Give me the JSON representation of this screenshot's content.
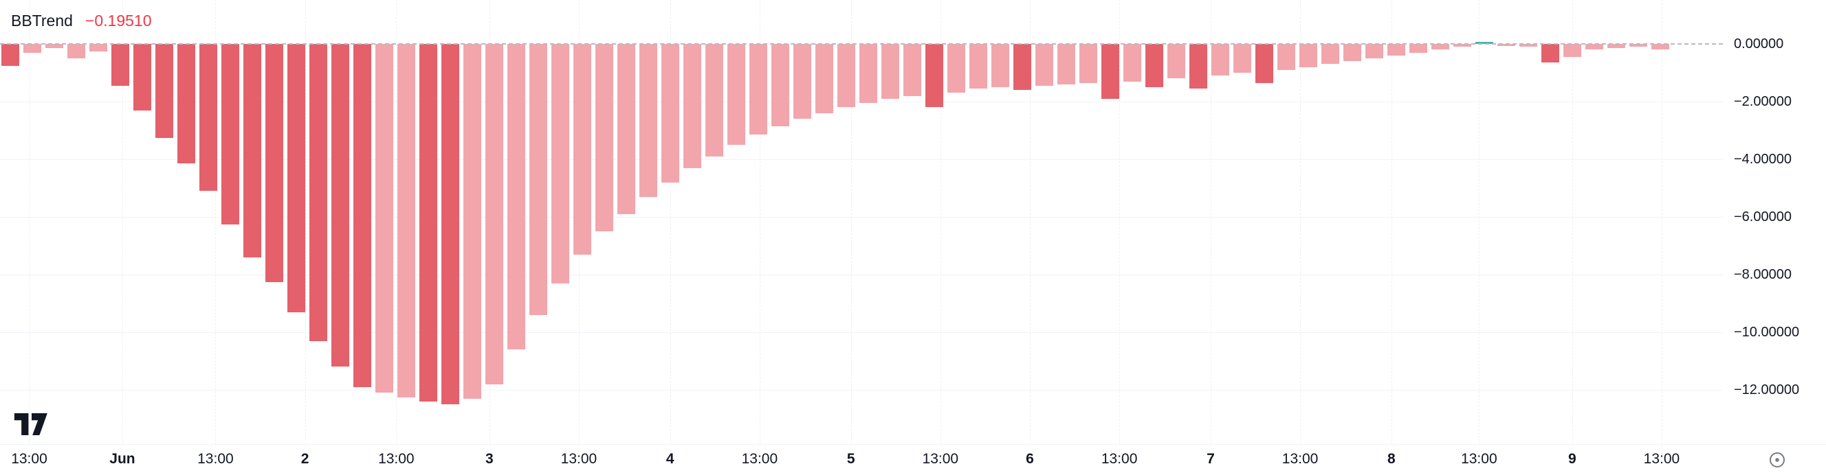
{
  "indicator": {
    "name": "BBTrend",
    "value": "−0.19510"
  },
  "colors": {
    "bar_dark": "#e4606a",
    "bar_light": "#f2a6ac",
    "bar_teal": "#45b3a7",
    "value_text": "#f23645",
    "axis_text": "#131722",
    "zero_line": "#b8bac3",
    "icon_gray": "#787b86"
  },
  "icons": {
    "logo": "tradingview-logo",
    "pane": "scale-settings-icon"
  },
  "chart_data": {
    "type": "bar",
    "title": "BBTrend",
    "current_value": -0.1951,
    "ylim": [
      -13.5,
      0.6
    ],
    "grid": true,
    "legend_position": "none",
    "y_ticks": [
      "0.00000",
      "−2.00000",
      "−4.00000",
      "−6.00000",
      "−8.00000",
      "−10.00000",
      "−12.00000"
    ],
    "x_ticks": [
      {
        "label": "13:00",
        "pct": 1.6,
        "bold": false
      },
      {
        "label": "Jun",
        "pct": 6.7,
        "bold": true
      },
      {
        "label": "13:00",
        "pct": 11.8,
        "bold": false
      },
      {
        "label": "2",
        "pct": 16.7,
        "bold": true
      },
      {
        "label": "13:00",
        "pct": 21.7,
        "bold": false
      },
      {
        "label": "3",
        "pct": 26.8,
        "bold": true
      },
      {
        "label": "13:00",
        "pct": 31.7,
        "bold": false
      },
      {
        "label": "4",
        "pct": 36.7,
        "bold": true
      },
      {
        "label": "13:00",
        "pct": 41.6,
        "bold": false
      },
      {
        "label": "5",
        "pct": 46.6,
        "bold": true
      },
      {
        "label": "13:00",
        "pct": 51.5,
        "bold": false
      },
      {
        "label": "6",
        "pct": 56.4,
        "bold": true
      },
      {
        "label": "13:00",
        "pct": 61.3,
        "bold": false
      },
      {
        "label": "7",
        "pct": 66.3,
        "bold": true
      },
      {
        "label": "13:00",
        "pct": 71.2,
        "bold": false
      },
      {
        "label": "8",
        "pct": 76.2,
        "bold": true
      },
      {
        "label": "13:00",
        "pct": 81.0,
        "bold": false
      },
      {
        "label": "9",
        "pct": 86.1,
        "bold": true
      },
      {
        "label": "13:00",
        "pct": 91.0,
        "bold": false
      }
    ],
    "bars": [
      {
        "v": -0.75,
        "c": "dark"
      },
      {
        "v": -0.3,
        "c": "light"
      },
      {
        "v": -0.15,
        "c": "light"
      },
      {
        "v": -0.5,
        "c": "light"
      },
      {
        "v": -0.25,
        "c": "light"
      },
      {
        "v": -1.45,
        "c": "dark"
      },
      {
        "v": -2.3,
        "c": "dark"
      },
      {
        "v": -3.25,
        "c": "dark"
      },
      {
        "v": -4.15,
        "c": "dark"
      },
      {
        "v": -5.1,
        "c": "dark"
      },
      {
        "v": -6.25,
        "c": "dark"
      },
      {
        "v": -7.4,
        "c": "dark"
      },
      {
        "v": -8.25,
        "c": "dark"
      },
      {
        "v": -9.3,
        "c": "dark"
      },
      {
        "v": -10.3,
        "c": "dark"
      },
      {
        "v": -11.2,
        "c": "dark"
      },
      {
        "v": -11.9,
        "c": "dark"
      },
      {
        "v": -12.1,
        "c": "light"
      },
      {
        "v": -12.25,
        "c": "light"
      },
      {
        "v": -12.4,
        "c": "dark"
      },
      {
        "v": -12.5,
        "c": "dark"
      },
      {
        "v": -12.3,
        "c": "light"
      },
      {
        "v": -11.8,
        "c": "light"
      },
      {
        "v": -10.6,
        "c": "light"
      },
      {
        "v": -9.4,
        "c": "light"
      },
      {
        "v": -8.3,
        "c": "light"
      },
      {
        "v": -7.3,
        "c": "light"
      },
      {
        "v": -6.5,
        "c": "light"
      },
      {
        "v": -5.9,
        "c": "light"
      },
      {
        "v": -5.3,
        "c": "light"
      },
      {
        "v": -4.8,
        "c": "light"
      },
      {
        "v": -4.3,
        "c": "light"
      },
      {
        "v": -3.9,
        "c": "light"
      },
      {
        "v": -3.5,
        "c": "light"
      },
      {
        "v": -3.15,
        "c": "light"
      },
      {
        "v": -2.85,
        "c": "light"
      },
      {
        "v": -2.6,
        "c": "light"
      },
      {
        "v": -2.4,
        "c": "light"
      },
      {
        "v": -2.2,
        "c": "light"
      },
      {
        "v": -2.05,
        "c": "light"
      },
      {
        "v": -1.9,
        "c": "light"
      },
      {
        "v": -1.8,
        "c": "light"
      },
      {
        "v": -2.2,
        "c": "dark"
      },
      {
        "v": -1.7,
        "c": "light"
      },
      {
        "v": -1.55,
        "c": "light"
      },
      {
        "v": -1.5,
        "c": "light"
      },
      {
        "v": -1.6,
        "c": "dark"
      },
      {
        "v": -1.45,
        "c": "light"
      },
      {
        "v": -1.4,
        "c": "light"
      },
      {
        "v": -1.35,
        "c": "light"
      },
      {
        "v": -1.9,
        "c": "dark"
      },
      {
        "v": -1.3,
        "c": "light"
      },
      {
        "v": -1.5,
        "c": "dark"
      },
      {
        "v": -1.2,
        "c": "light"
      },
      {
        "v": -1.55,
        "c": "dark"
      },
      {
        "v": -1.1,
        "c": "light"
      },
      {
        "v": -1.0,
        "c": "light"
      },
      {
        "v": -1.35,
        "c": "dark"
      },
      {
        "v": -0.9,
        "c": "light"
      },
      {
        "v": -0.8,
        "c": "light"
      },
      {
        "v": -0.7,
        "c": "light"
      },
      {
        "v": -0.6,
        "c": "light"
      },
      {
        "v": -0.5,
        "c": "light"
      },
      {
        "v": -0.4,
        "c": "light"
      },
      {
        "v": -0.3,
        "c": "light"
      },
      {
        "v": -0.2,
        "c": "light"
      },
      {
        "v": -0.1,
        "c": "light"
      },
      {
        "v": 0.08,
        "c": "teal"
      },
      {
        "v": -0.05,
        "c": "light"
      },
      {
        "v": -0.1,
        "c": "light"
      },
      {
        "v": -0.65,
        "c": "dark"
      },
      {
        "v": -0.45,
        "c": "light"
      },
      {
        "v": -0.2,
        "c": "light"
      },
      {
        "v": -0.15,
        "c": "light"
      },
      {
        "v": -0.1,
        "c": "light"
      },
      {
        "v": -0.195,
        "c": "light"
      }
    ]
  }
}
